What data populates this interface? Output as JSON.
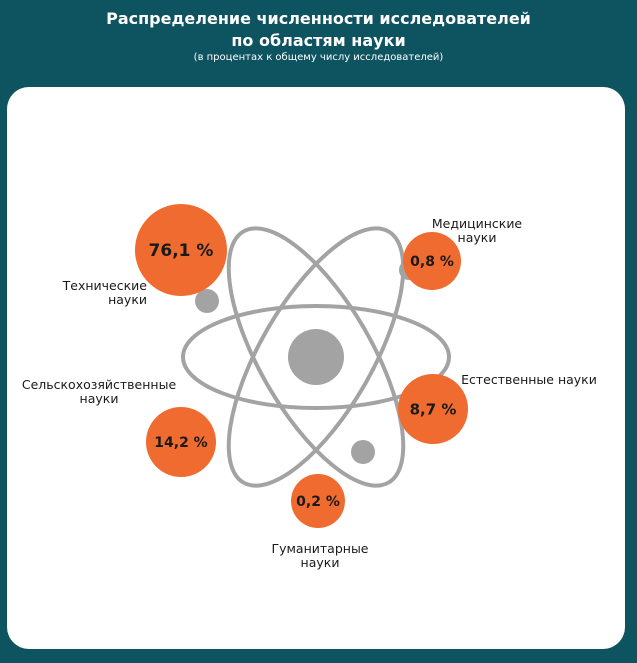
{
  "chart_data": {
    "type": "bubble",
    "title": "Распределение численности исследователей по областям науки",
    "title_lines": [
      "Распределение численности исследователей",
      "по областям науки"
    ],
    "subtitle": "(в процентах к общему числу исследователей)",
    "unit": "%",
    "categories": [
      {
        "key": "tech",
        "name_lines": [
          "Технические",
          "науки"
        ],
        "value": 76.1,
        "label": "76,1 %"
      },
      {
        "key": "med",
        "name_lines": [
          "Медицинские",
          "науки"
        ],
        "value": 0.8,
        "label": "0,8 %"
      },
      {
        "key": "agri",
        "name_lines": [
          "Сельскохозяйственные",
          "науки"
        ],
        "value": 14.2,
        "label": "14,2 %"
      },
      {
        "key": "nat",
        "name_lines": [
          "Естественные науки"
        ],
        "value": 8.7,
        "label": "8,7 %"
      },
      {
        "key": "hum",
        "name_lines": [
          "Гуманитарные",
          "науки"
        ],
        "value": 0.2,
        "label": "0,2 %"
      }
    ]
  },
  "colors": {
    "background": "#0e5360",
    "panel": "#ffffff",
    "bubble": "#ef6b30",
    "orbit": "#a3a3a3",
    "nucleus": "#a3a3a3"
  }
}
